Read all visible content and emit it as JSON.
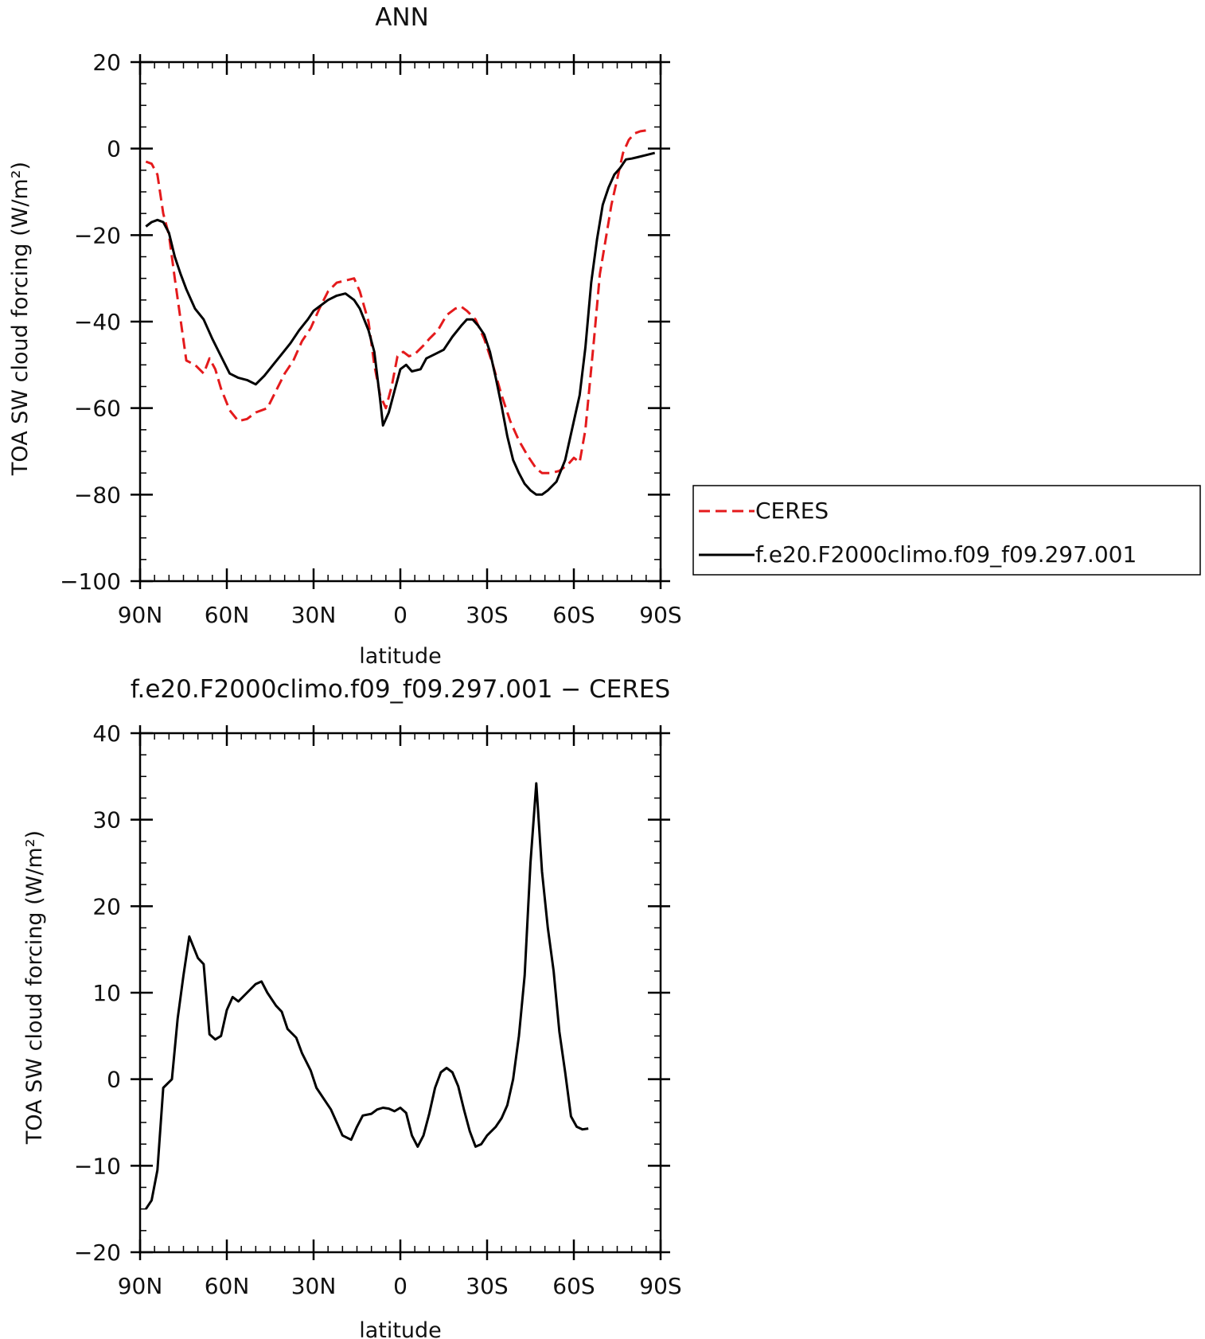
{
  "chart_data": [
    {
      "type": "line",
      "title": "ANN",
      "xlabel": "latitude",
      "ylabel": "TOA SW cloud forcing (W/m²)",
      "xlim": [
        90,
        -90
      ],
      "ylim": [
        -100,
        20
      ],
      "x_ticks": [
        {
          "value": 90,
          "label": "90N"
        },
        {
          "value": 60,
          "label": "60N"
        },
        {
          "value": 30,
          "label": "30N"
        },
        {
          "value": 0,
          "label": "0"
        },
        {
          "value": -30,
          "label": "30S"
        },
        {
          "value": -60,
          "label": "60S"
        },
        {
          "value": -90,
          "label": "90S"
        }
      ],
      "y_ticks": [
        {
          "value": 20,
          "label": "20"
        },
        {
          "value": 0,
          "label": "0"
        },
        {
          "value": -20,
          "label": "−20"
        },
        {
          "value": -40,
          "label": "−40"
        },
        {
          "value": -60,
          "label": "−60"
        },
        {
          "value": -80,
          "label": "−80"
        },
        {
          "value": -100,
          "label": "−100"
        }
      ],
      "legend": "right",
      "series": [
        {
          "name": "CERES",
          "color": "#e41a1c",
          "dash": "dashed",
          "points": [
            [
              88,
              -3
            ],
            [
              86,
              -3.5
            ],
            [
              84,
              -6
            ],
            [
              82,
              -15
            ],
            [
              80,
              -20
            ],
            [
              78,
              -30
            ],
            [
              74,
              -49
            ],
            [
              71,
              -50
            ],
            [
              68,
              -52
            ],
            [
              66,
              -48.5
            ],
            [
              64,
              -51
            ],
            [
              62,
              -55.5
            ],
            [
              59,
              -60.5
            ],
            [
              56,
              -63
            ],
            [
              53,
              -62.5
            ],
            [
              50,
              -61
            ],
            [
              46,
              -60
            ],
            [
              43,
              -56
            ],
            [
              40,
              -52
            ],
            [
              37,
              -49
            ],
            [
              34,
              -44.5
            ],
            [
              31,
              -41.5
            ],
            [
              28,
              -37
            ],
            [
              25,
              -33
            ],
            [
              22,
              -31
            ],
            [
              19,
              -30.5
            ],
            [
              16,
              -30
            ],
            [
              14,
              -33
            ],
            [
              11,
              -40
            ],
            [
              9,
              -50
            ],
            [
              7,
              -57
            ],
            [
              5,
              -60
            ],
            [
              3,
              -55
            ],
            [
              1,
              -48
            ],
            [
              -1,
              -47
            ],
            [
              -3,
              -48
            ],
            [
              -5,
              -47.5
            ],
            [
              -8,
              -45.5
            ],
            [
              -10,
              -44
            ],
            [
              -13,
              -42
            ],
            [
              -16,
              -38.5
            ],
            [
              -19,
              -37
            ],
            [
              -21,
              -36.5
            ],
            [
              -23,
              -37.5
            ],
            [
              -26,
              -39.5
            ],
            [
              -29,
              -44
            ],
            [
              -32,
              -50
            ],
            [
              -35,
              -57
            ],
            [
              -38,
              -63
            ],
            [
              -41,
              -67.5
            ],
            [
              -44,
              -71
            ],
            [
              -47,
              -74
            ],
            [
              -49,
              -75
            ],
            [
              -52,
              -75
            ],
            [
              -55,
              -74.5
            ],
            [
              -58,
              -73
            ],
            [
              -60,
              -71.5
            ],
            [
              -62,
              -72.5
            ],
            [
              -64,
              -65
            ],
            [
              -67,
              -44
            ],
            [
              -69,
              -29
            ],
            [
              -71,
              -21
            ],
            [
              -73,
              -13
            ],
            [
              -75,
              -7
            ],
            [
              -77,
              -1
            ],
            [
              -79,
              2
            ],
            [
              -81,
              3.5
            ],
            [
              -83,
              4
            ],
            [
              -85,
              4.2
            ]
          ]
        },
        {
          "name": "f.e20.F2000climo.f09_f09.297.001",
          "color": "#000000",
          "dash": "solid",
          "points": [
            [
              88,
              -18
            ],
            [
              86,
              -17
            ],
            [
              84,
              -16.5
            ],
            [
              82,
              -17
            ],
            [
              80,
              -19.5
            ],
            [
              78,
              -25
            ],
            [
              76,
              -29
            ],
            [
              74,
              -32.5
            ],
            [
              71,
              -37
            ],
            [
              68,
              -39.5
            ],
            [
              65,
              -44
            ],
            [
              62,
              -48
            ],
            [
              59,
              -52
            ],
            [
              56,
              -53
            ],
            [
              53,
              -53.5
            ],
            [
              50,
              -54.5
            ],
            [
              47,
              -52.5
            ],
            [
              44,
              -50
            ],
            [
              41,
              -47.5
            ],
            [
              38,
              -45
            ],
            [
              35,
              -42
            ],
            [
              32,
              -39.5
            ],
            [
              30,
              -37.5
            ],
            [
              28,
              -36.5
            ],
            [
              25,
              -35
            ],
            [
              22,
              -34
            ],
            [
              19,
              -33.5
            ],
            [
              16,
              -35
            ],
            [
              14,
              -37
            ],
            [
              11,
              -42
            ],
            [
              9,
              -47
            ],
            [
              7,
              -58
            ],
            [
              6,
              -64
            ],
            [
              4,
              -61
            ],
            [
              2,
              -56
            ],
            [
              0,
              -51
            ],
            [
              -2,
              -50
            ],
            [
              -4,
              -51.5
            ],
            [
              -7,
              -51
            ],
            [
              -9,
              -48.5
            ],
            [
              -12,
              -47.5
            ],
            [
              -15,
              -46.5
            ],
            [
              -18,
              -43.5
            ],
            [
              -21,
              -41
            ],
            [
              -23,
              -39.5
            ],
            [
              -25,
              -39.5
            ],
            [
              -27,
              -41
            ],
            [
              -29,
              -43
            ],
            [
              -31,
              -47
            ],
            [
              -33,
              -53
            ],
            [
              -35,
              -59.5
            ],
            [
              -37,
              -66.5
            ],
            [
              -39,
              -72
            ],
            [
              -41,
              -75
            ],
            [
              -43,
              -77.5
            ],
            [
              -45,
              -79
            ],
            [
              -47,
              -80
            ],
            [
              -49,
              -80
            ],
            [
              -51,
              -79
            ],
            [
              -54,
              -77
            ],
            [
              -57,
              -72
            ],
            [
              -60,
              -63
            ],
            [
              -62,
              -57
            ],
            [
              -64,
              -46
            ],
            [
              -66,
              -31
            ],
            [
              -68,
              -21
            ],
            [
              -70,
              -13
            ],
            [
              -72,
              -9
            ],
            [
              -74,
              -6
            ],
            [
              -76,
              -4.5
            ],
            [
              -78,
              -2.5
            ],
            [
              -80,
              -2.3
            ],
            [
              -82,
              -2
            ],
            [
              -85,
              -1.5
            ],
            [
              -88,
              -1
            ]
          ]
        }
      ]
    },
    {
      "type": "line",
      "title": "f.e20.F2000climo.f09_f09.297.001 − CERES",
      "xlabel": "latitude",
      "ylabel": "TOA SW cloud forcing (W/m²)",
      "xlim": [
        90,
        -90
      ],
      "ylim": [
        -20,
        40
      ],
      "x_ticks": [
        {
          "value": 90,
          "label": "90N"
        },
        {
          "value": 60,
          "label": "60N"
        },
        {
          "value": 30,
          "label": "30N"
        },
        {
          "value": 0,
          "label": "0"
        },
        {
          "value": -30,
          "label": "30S"
        },
        {
          "value": -60,
          "label": "60S"
        },
        {
          "value": -90,
          "label": "90S"
        }
      ],
      "y_ticks": [
        {
          "value": 40,
          "label": "40"
        },
        {
          "value": 30,
          "label": "30"
        },
        {
          "value": 20,
          "label": "20"
        },
        {
          "value": 10,
          "label": "10"
        },
        {
          "value": 0,
          "label": "0"
        },
        {
          "value": -10,
          "label": "−10"
        },
        {
          "value": -20,
          "label": "−20"
        }
      ],
      "series": [
        {
          "color": "#000000",
          "dash": "solid",
          "points": [
            [
              88,
              -15
            ],
            [
              86,
              -14
            ],
            [
              84,
              -10.5
            ],
            [
              82,
              -1
            ],
            [
              79,
              0
            ],
            [
              77,
              7
            ],
            [
              75,
              12
            ],
            [
              73,
              16.5
            ],
            [
              70,
              14
            ],
            [
              68,
              13.3
            ],
            [
              66,
              5.2
            ],
            [
              64,
              4.6
            ],
            [
              62,
              5
            ],
            [
              60,
              8
            ],
            [
              58,
              9.5
            ],
            [
              56,
              9
            ],
            [
              53,
              10
            ],
            [
              50,
              11
            ],
            [
              48,
              11.3
            ],
            [
              46,
              10
            ],
            [
              43,
              8.5
            ],
            [
              41,
              7.8
            ],
            [
              39,
              5.8
            ],
            [
              36,
              4.8
            ],
            [
              34,
              3
            ],
            [
              31,
              1
            ],
            [
              29,
              -1
            ],
            [
              26,
              -2.5
            ],
            [
              24,
              -3.5
            ],
            [
              22,
              -5
            ],
            [
              20,
              -6.5
            ],
            [
              17,
              -7
            ],
            [
              15,
              -5.5
            ],
            [
              13,
              -4.2
            ],
            [
              10,
              -4
            ],
            [
              8,
              -3.5
            ],
            [
              6,
              -3.3
            ],
            [
              4,
              -3.4
            ],
            [
              2,
              -3.7
            ],
            [
              0,
              -3.3
            ],
            [
              -2,
              -3.9
            ],
            [
              -4,
              -6.5
            ],
            [
              -6,
              -7.8
            ],
            [
              -8,
              -6.5
            ],
            [
              -10,
              -4
            ],
            [
              -12,
              -1
            ],
            [
              -14,
              0.8
            ],
            [
              -16,
              1.3
            ],
            [
              -18,
              0.8
            ],
            [
              -20,
              -0.8
            ],
            [
              -22,
              -3.5
            ],
            [
              -24,
              -6
            ],
            [
              -26,
              -7.8
            ],
            [
              -28,
              -7.5
            ],
            [
              -30,
              -6.5
            ],
            [
              -33,
              -5.5
            ],
            [
              -35,
              -4.5
            ],
            [
              -37,
              -3
            ],
            [
              -39,
              0
            ],
            [
              -41,
              5
            ],
            [
              -43,
              12
            ],
            [
              -45,
              25
            ],
            [
              -47,
              34.2
            ],
            [
              -49,
              24
            ],
            [
              -51,
              17.5
            ],
            [
              -53,
              12.5
            ],
            [
              -55,
              5.5
            ],
            [
              -57,
              0.8
            ],
            [
              -59,
              -4.3
            ],
            [
              -61,
              -5.5
            ],
            [
              -63,
              -5.8
            ],
            [
              -65,
              -5.7
            ]
          ]
        }
      ]
    }
  ]
}
